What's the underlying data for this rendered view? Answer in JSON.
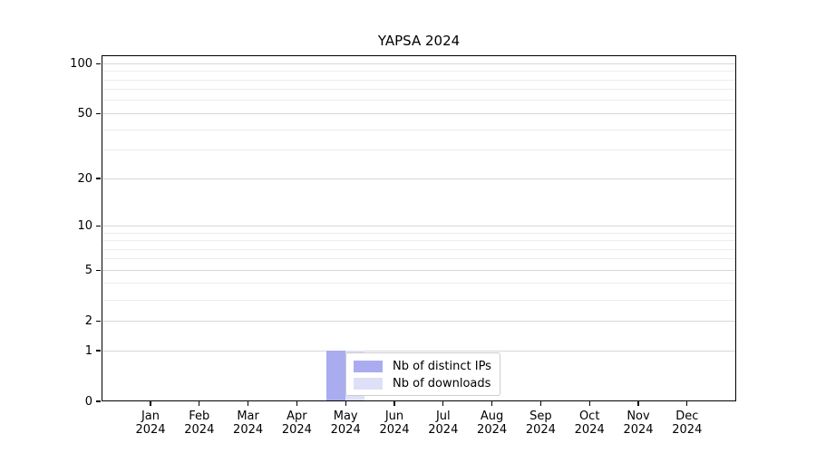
{
  "title": "YAPSA 2024",
  "colors": {
    "background": "#ffffff",
    "axis": "#000000",
    "grid_major": "#d7d7d7",
    "grid_minor": "#ececec",
    "legend_border": "#cccccc",
    "distinct_ips_bar": "#aaacf0",
    "downloads_bar": "#dee0f8"
  },
  "chart_data": {
    "type": "bar",
    "title": "YAPSA 2024",
    "categories": [
      "Jan 2024",
      "Feb 2024",
      "Mar 2024",
      "Apr 2024",
      "May 2024",
      "Jun 2024",
      "Jul 2024",
      "Aug 2024",
      "Sep 2024",
      "Oct 2024",
      "Nov 2024",
      "Dec 2024"
    ],
    "series": [
      {
        "name": "Nb of distinct IPs",
        "color": "#aaacf0",
        "values": [
          0,
          0,
          0,
          0,
          1,
          0,
          0,
          0,
          0,
          0,
          0,
          0
        ]
      },
      {
        "name": "Nb of downloads",
        "color": "#dee0f8",
        "values": [
          0,
          0,
          0,
          0,
          1,
          0,
          0,
          0,
          0,
          0,
          0,
          0
        ]
      }
    ],
    "xlabel": "",
    "ylabel": "",
    "y_scale": "log10(value+1)",
    "y_major_ticks": [
      0,
      1,
      2,
      5,
      10,
      20,
      50,
      100
    ],
    "y_minor_gridlines": [
      3,
      4,
      6,
      7,
      8,
      9,
      30,
      40,
      60,
      70,
      80,
      90
    ],
    "ylim": [
      0,
      110
    ],
    "grid": "horizontal",
    "legend": {
      "position": "inside-bottom-center",
      "entries": [
        "Nb of distinct IPs",
        "Nb of downloads"
      ]
    }
  }
}
